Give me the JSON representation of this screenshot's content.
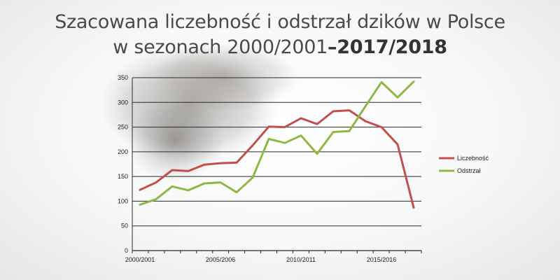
{
  "header": {
    "title_line1": "Szacowana liczebność i odstrzał dzików w Polsce",
    "title_line2_prefix": "w sezonach 2000/2001",
    "title_line2_suffix": "–2017/2018"
  },
  "chart_data": {
    "type": "line",
    "title": "Szacowana liczebność i odstrzał dzików w Polsce w sezonach 2000/2001–2017/2018",
    "xlabel": "",
    "ylabel": "",
    "ylim": [
      0,
      350
    ],
    "yticks": [
      0,
      50,
      100,
      150,
      200,
      250,
      300,
      350
    ],
    "x_tick_labels": [
      {
        "index": 0,
        "label": "2000/2001"
      },
      {
        "index": 5,
        "label": "2005/2006"
      },
      {
        "index": 10,
        "label": "2010/2011"
      },
      {
        "index": 15,
        "label": "2015/2016"
      }
    ],
    "n_points": 18,
    "grid": true,
    "legend_position": "right",
    "series": [
      {
        "name": "Liczebność",
        "color": "#c0504d",
        "values": [
          123,
          138,
          163,
          161,
          174,
          177,
          178,
          213,
          251,
          250,
          268,
          256,
          282,
          284,
          262,
          250,
          215,
          87
        ]
      },
      {
        "name": "Odstrzał",
        "color": "#8db848",
        "values": [
          93,
          104,
          130,
          122,
          136,
          138,
          118,
          148,
          226,
          218,
          233,
          196,
          240,
          242,
          292,
          341,
          310,
          342
        ]
      }
    ]
  }
}
